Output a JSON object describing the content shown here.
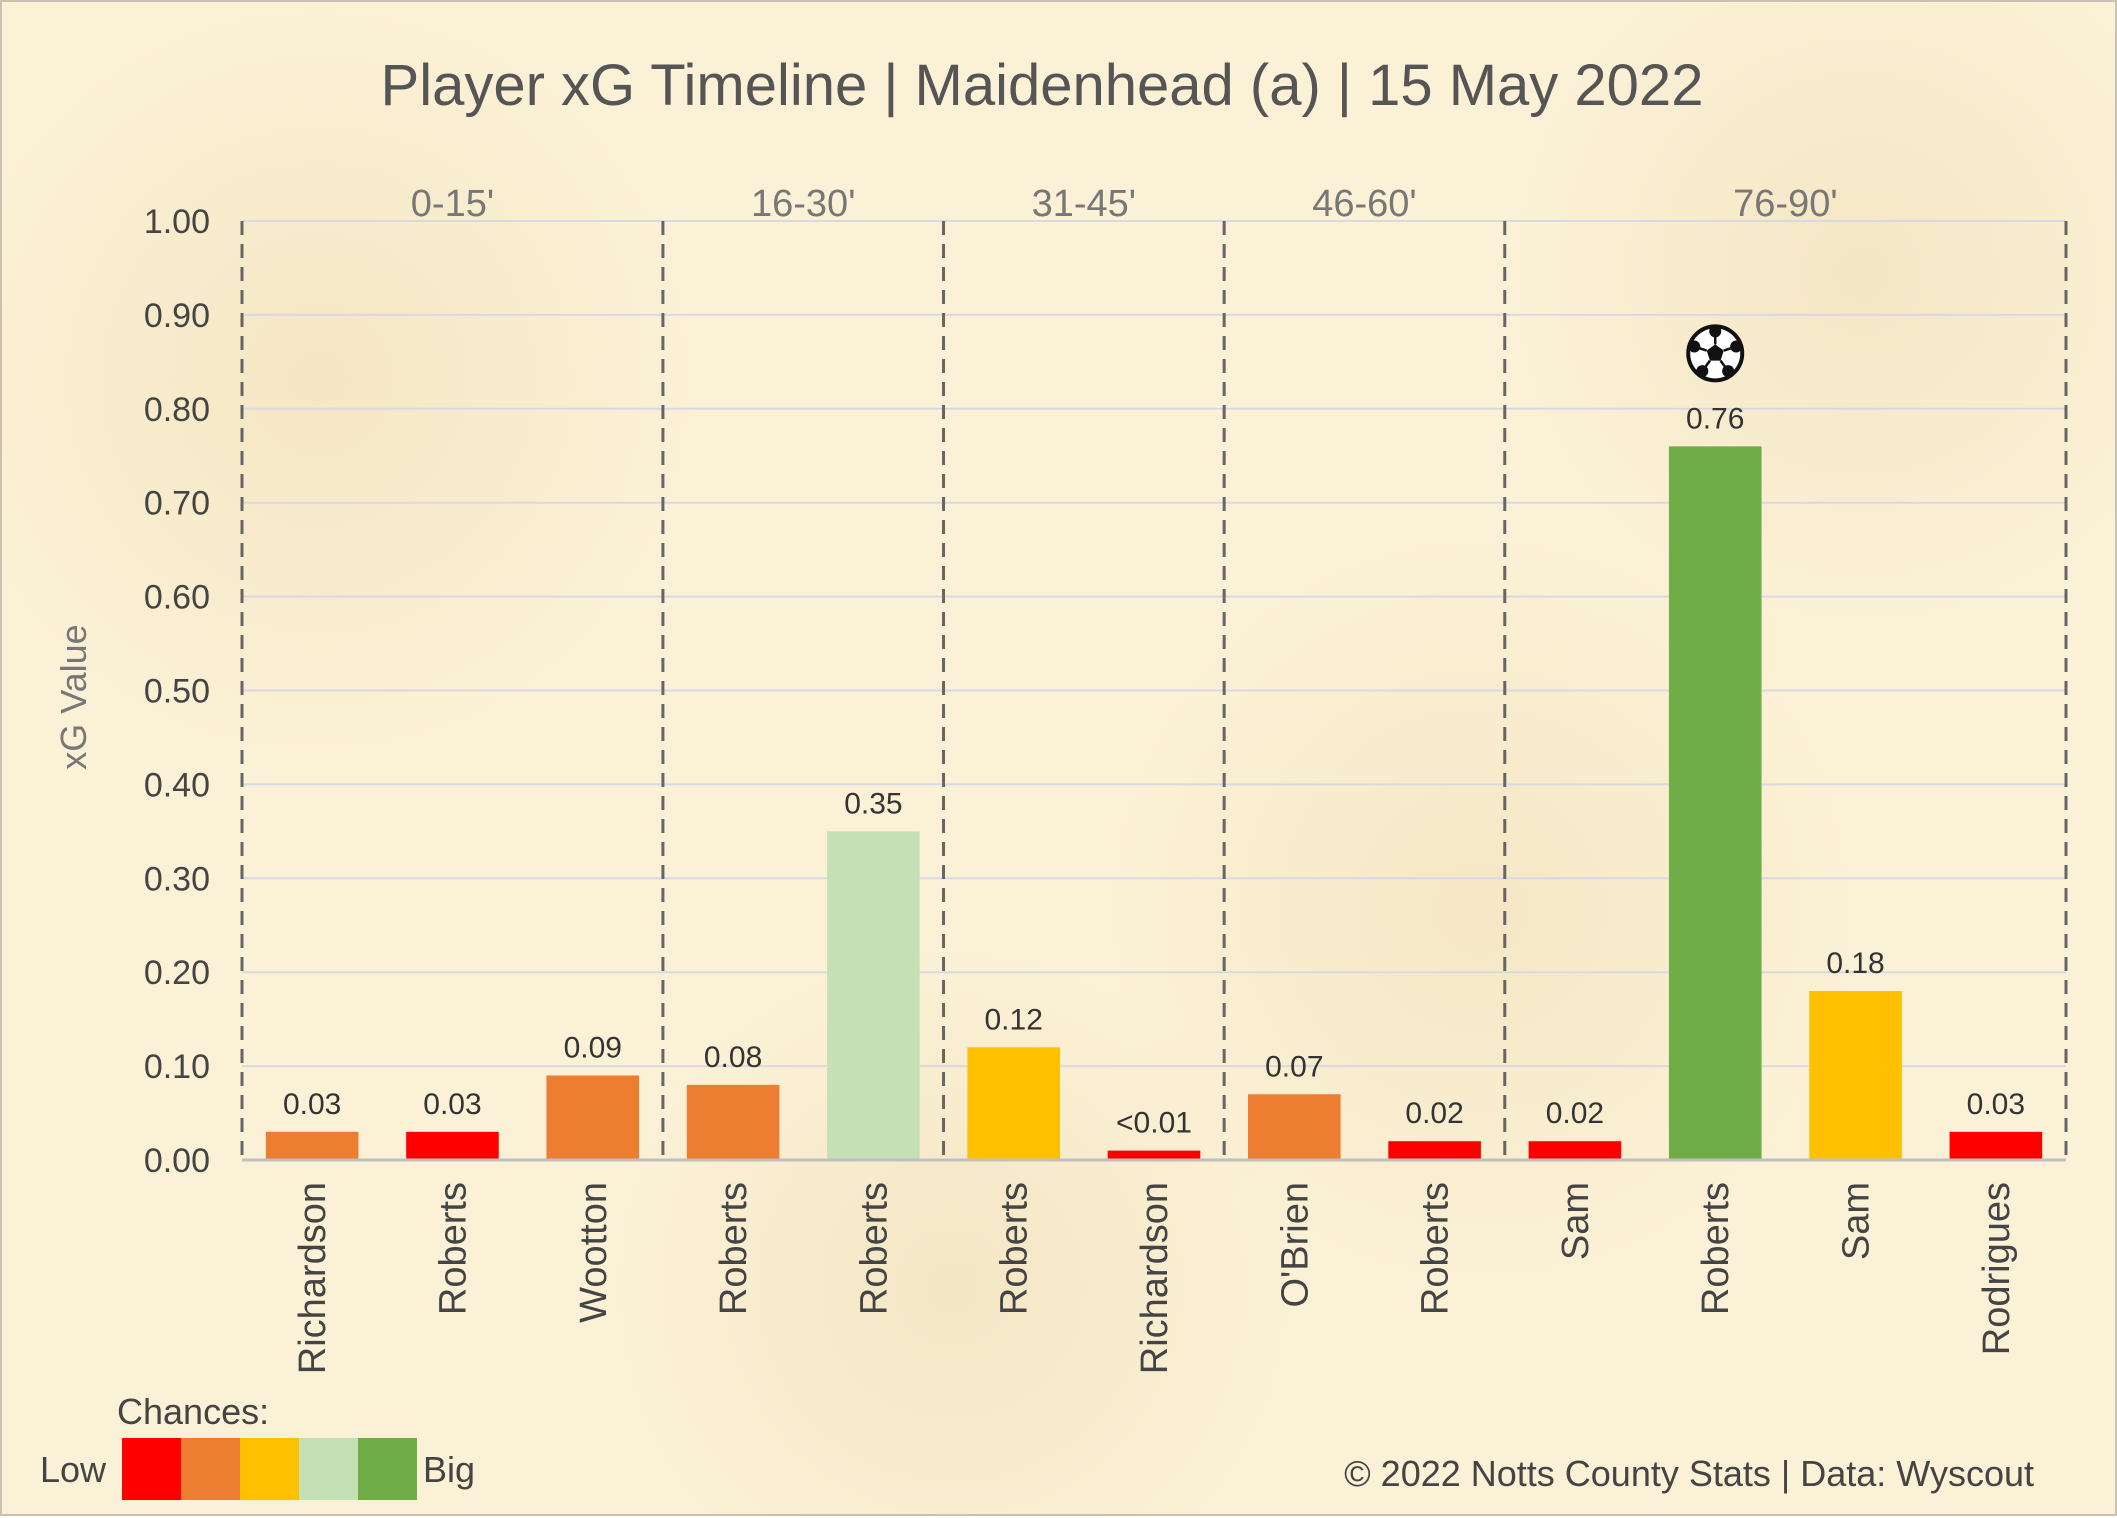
{
  "chart_data": {
    "type": "bar",
    "title": "Player xG Timeline | Maidenhead (a) | 15 May 2022",
    "ylabel": "xG Value",
    "ylim": [
      0,
      1.0
    ],
    "yticks": [
      "0.00",
      "0.10",
      "0.20",
      "0.30",
      "0.40",
      "0.50",
      "0.60",
      "0.70",
      "0.80",
      "0.90",
      "1.00"
    ],
    "grid": true,
    "periods": [
      {
        "label": "0-15'",
        "first": 0,
        "last": 2
      },
      {
        "label": "16-30'",
        "first": 3,
        "last": 4
      },
      {
        "label": "31-45'",
        "first": 5,
        "last": 6
      },
      {
        "label": "46-60'",
        "first": 7,
        "last": 8
      },
      {
        "label": "76-90'",
        "first": 9,
        "last": 12
      }
    ],
    "categories": [
      "Richardson",
      "Roberts",
      "Wootton",
      "Roberts",
      "Roberts",
      "Roberts",
      "Richardson",
      "O'Brien",
      "Roberts",
      "Sam",
      "Roberts",
      "Sam",
      "Rodrigues"
    ],
    "values": [
      0.03,
      0.03,
      0.09,
      0.08,
      0.35,
      0.12,
      0.01,
      0.07,
      0.02,
      0.02,
      0.76,
      0.18,
      0.03
    ],
    "labels": [
      "0.03",
      "0.03",
      "0.09",
      "0.08",
      "0.35",
      "0.12",
      "<0.01",
      "0.07",
      "0.02",
      "0.02",
      "0.76",
      "0.18",
      "0.03"
    ],
    "chance_level": [
      2,
      1,
      2,
      2,
      4,
      3,
      1,
      2,
      1,
      1,
      5,
      3,
      1
    ],
    "goal_index": 10
  },
  "legend": {
    "heading": "Chances:",
    "low_label": "Low",
    "high_label": "Big",
    "colors": [
      "#ff0000",
      "#ed7d31",
      "#ffc000",
      "#c5e0b4",
      "#70ad47"
    ]
  },
  "footer": "© 2022 Notts County Stats | Data: Wyscout",
  "colors": {
    "grid": "#d9d9e3",
    "axis": "#bfbfbf",
    "divider": "#666666",
    "background": "#fbf1d6"
  }
}
